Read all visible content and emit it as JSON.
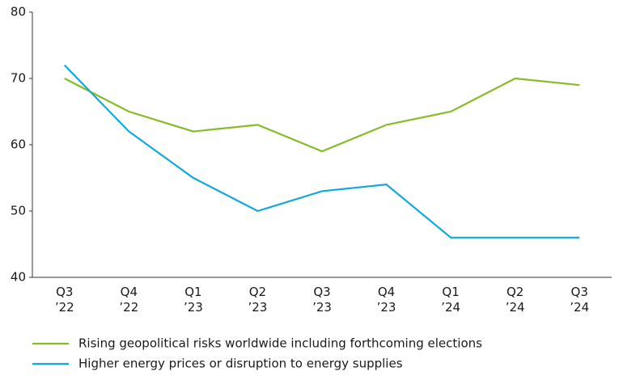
{
  "chart_data": {
    "type": "line",
    "categories": [
      "Q3 ’22",
      "Q4 ’22",
      "Q1 ’23",
      "Q2 ’23",
      "Q3 ’23",
      "Q4 ’23",
      "Q1 ’24",
      "Q2 ’24",
      "Q3 ’24"
    ],
    "series": [
      {
        "name": "Rising geopolitical risks worldwide including forthcoming elections",
        "color": "#86bc25",
        "values": [
          70,
          65,
          62,
          63,
          59,
          63,
          65,
          70,
          69
        ]
      },
      {
        "name": "Higher energy prices or disruption to energy supplies",
        "color": "#0fa9dc",
        "values": [
          72,
          62,
          55,
          50,
          53,
          54,
          46,
          46,
          46
        ]
      }
    ],
    "ylim": [
      40,
      80
    ],
    "yticks": [
      40,
      50,
      60,
      70,
      80
    ],
    "grid": false,
    "legend": "bottom"
  }
}
